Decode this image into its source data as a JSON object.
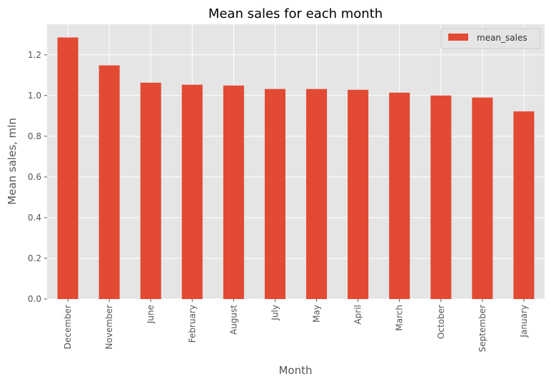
{
  "chart_data": {
    "type": "bar",
    "title": "Mean sales for each month",
    "xlabel": "Month",
    "ylabel": "Mean sales, mln",
    "categories": [
      "December",
      "November",
      "June",
      "February",
      "August",
      "July",
      "May",
      "April",
      "March",
      "October",
      "September",
      "January"
    ],
    "series": [
      {
        "name": "mean_sales",
        "values": [
          1.285,
          1.148,
          1.063,
          1.053,
          1.049,
          1.032,
          1.032,
          1.028,
          1.014,
          1.0,
          0.99,
          0.922
        ]
      }
    ],
    "ylim": [
      0,
      1.35
    ],
    "yticks": [
      "0.0",
      "0.2",
      "0.4",
      "0.6",
      "0.8",
      "1.0",
      "1.2"
    ],
    "grid": true,
    "legend_position": "top-right",
    "colors": {
      "bar": "#E24A33",
      "plot_background": "#E5E5E5",
      "grid": "#FFFFFF"
    }
  }
}
